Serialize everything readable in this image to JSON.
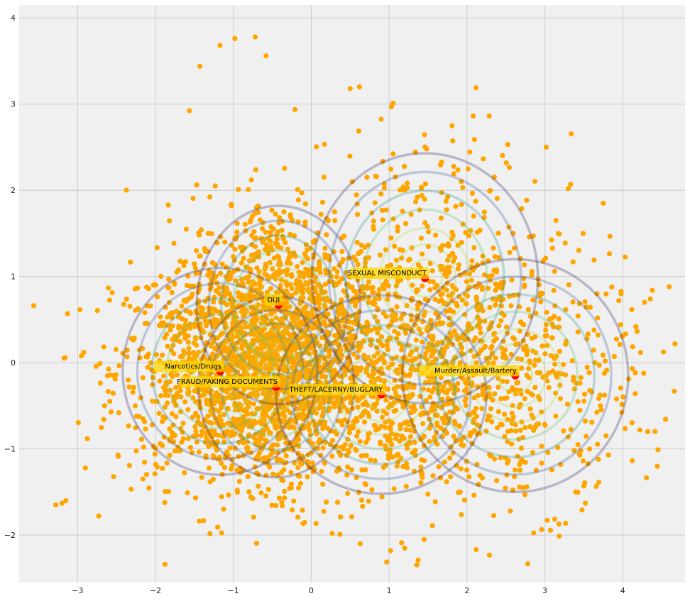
{
  "chart_data": {
    "type": "scatter",
    "title": "",
    "xlabel": "",
    "ylabel": "",
    "xlim": [
      -3.75,
      4.8
    ],
    "ylim": [
      -2.55,
      4.15
    ],
    "xticks": [
      -3,
      -2,
      -1,
      0,
      1,
      2,
      3,
      4
    ],
    "yticks": [
      -2,
      -1,
      0,
      1,
      2,
      3,
      4
    ],
    "grid": true,
    "background": "#f0f0f0",
    "point_color": "#ffa500",
    "centroid_color": "#ff0000",
    "label_box_color": "#ffd700",
    "contour_palette": [
      "#2b1f5c",
      "#3a5a9a",
      "#2c8e8c",
      "#5dbf6a",
      "#b5d84a"
    ],
    "clusters": [
      {
        "label": "Narcotics/Drugs",
        "x": -1.17,
        "y": -0.1,
        "rx": 1.25,
        "ry": 1.2
      },
      {
        "label": "FRAUD/FAKING DOCUMENTS",
        "x": -0.45,
        "y": -0.28,
        "rx": 1.0,
        "ry": 1.05
      },
      {
        "label": "DUI",
        "x": -0.42,
        "y": 0.67,
        "rx": 1.05,
        "ry": 1.15
      },
      {
        "label": "THEFT/LACERNY/BUGLARY",
        "x": 0.9,
        "y": -0.37,
        "rx": 1.35,
        "ry": 1.15
      },
      {
        "label": "SEXUAL MISCONDUCT",
        "x": 1.46,
        "y": 0.98,
        "rx": 1.45,
        "ry": 1.45
      },
      {
        "label": "Murder/Assault/Bartery",
        "x": 2.62,
        "y": -0.15,
        "rx": 1.45,
        "ry": 1.35
      }
    ],
    "scatter_samples": [
      {
        "x": -3.2,
        "y": -1.63
      },
      {
        "x": -3.28,
        "y": -1.65
      },
      {
        "x": -3.15,
        "y": -1.6
      },
      {
        "x": -2.95,
        "y": 0.08
      },
      {
        "x": -2.92,
        "y": 0.12
      },
      {
        "x": -2.9,
        "y": -1.22
      },
      {
        "x": -0.98,
        "y": 3.76
      },
      {
        "x": -0.72,
        "y": 3.78
      },
      {
        "x": -1.17,
        "y": 3.68
      },
      {
        "x": -1.43,
        "y": 3.44
      },
      {
        "x": -0.58,
        "y": 3.56
      },
      {
        "x": 0.5,
        "y": 3.18
      },
      {
        "x": 0.62,
        "y": 3.2
      },
      {
        "x": 1.03,
        "y": 2.97
      },
      {
        "x": 3.95,
        "y": 0.72
      },
      {
        "x": 4.38,
        "y": 0.84
      },
      {
        "x": 4.28,
        "y": 0.7
      },
      {
        "x": 3.92,
        "y": -0.42
      },
      {
        "x": 4.22,
        "y": -0.78
      },
      {
        "x": 4.32,
        "y": -0.8
      },
      {
        "x": 0.27,
        "y": -1.98
      },
      {
        "x": 1.02,
        "y": -2.18
      },
      {
        "x": 1.2,
        "y": -2.15
      },
      {
        "x": 0.63,
        "y": -2.1
      },
      {
        "x": 1.45,
        "y": -2.05
      },
      {
        "x": 3.3,
        "y": 2.02
      },
      {
        "x": 3.75,
        "y": 1.85
      }
    ]
  }
}
